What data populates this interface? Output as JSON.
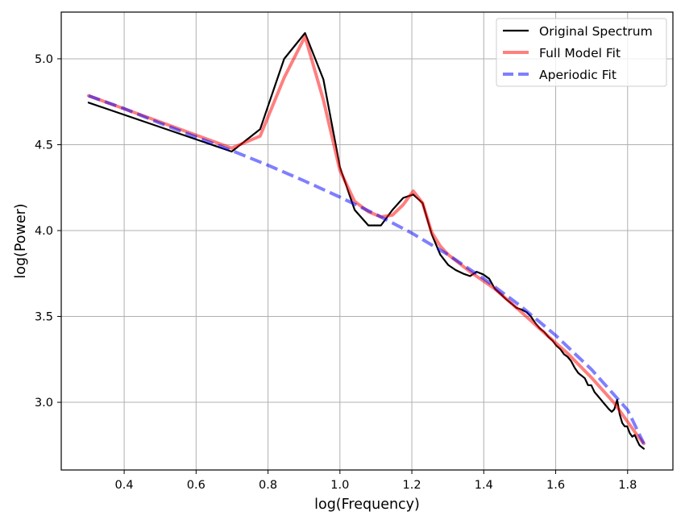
{
  "chart_data": {
    "type": "line",
    "title": "",
    "xlabel": "log(Frequency)",
    "ylabel": "log(Power)",
    "xlim": [
      0.225,
      1.926
    ],
    "ylim": [
      2.606,
      5.272
    ],
    "xticks": [
      0.4,
      0.6,
      0.8,
      1.0,
      1.2,
      1.4,
      1.6,
      1.8
    ],
    "xtick_labels": [
      "0.4",
      "0.6",
      "0.8",
      "1.0",
      "1.2",
      "1.4",
      "1.6",
      "1.8"
    ],
    "yticks": [
      3.0,
      3.5,
      4.0,
      4.5,
      5.0
    ],
    "ytick_labels": [
      "3.0",
      "3.5",
      "4.0",
      "4.5",
      "5.0"
    ],
    "grid": true,
    "legend_position": "upper right",
    "series": [
      {
        "name": "Original Spectrum",
        "color": "#000000",
        "style": "solid",
        "width": 2.2,
        "opacity": 1,
        "x": [
          0.301,
          0.699,
          0.778,
          0.845,
          0.903,
          0.954,
          1.0,
          1.041,
          1.079,
          1.114,
          1.146,
          1.176,
          1.204,
          1.23,
          1.255,
          1.279,
          1.301,
          1.322,
          1.342,
          1.362,
          1.38,
          1.398,
          1.415,
          1.431,
          1.447,
          1.462,
          1.477,
          1.491,
          1.505,
          1.519,
          1.531,
          1.544,
          1.556,
          1.568,
          1.58,
          1.591,
          1.602,
          1.613,
          1.623,
          1.633,
          1.643,
          1.653,
          1.663,
          1.672,
          1.681,
          1.69,
          1.699,
          1.708,
          1.716,
          1.724,
          1.732,
          1.74,
          1.748,
          1.756,
          1.763,
          1.771,
          1.778,
          1.785,
          1.792,
          1.799,
          1.806,
          1.813,
          1.82,
          1.826,
          1.833,
          1.839,
          1.845
        ],
        "y": [
          4.745,
          4.46,
          4.59,
          5.0,
          5.15,
          4.88,
          4.37,
          4.12,
          4.03,
          4.03,
          4.12,
          4.19,
          4.21,
          4.16,
          3.98,
          3.86,
          3.8,
          3.77,
          3.75,
          3.735,
          3.76,
          3.745,
          3.72,
          3.66,
          3.63,
          3.6,
          3.575,
          3.55,
          3.54,
          3.525,
          3.5,
          3.46,
          3.43,
          3.41,
          3.38,
          3.36,
          3.33,
          3.31,
          3.28,
          3.265,
          3.24,
          3.2,
          3.17,
          3.155,
          3.14,
          3.1,
          3.1,
          3.06,
          3.04,
          3.02,
          3.0,
          2.98,
          2.96,
          2.945,
          2.96,
          3.015,
          2.93,
          2.88,
          2.86,
          2.86,
          2.82,
          2.8,
          2.81,
          2.78,
          2.75,
          2.74,
          2.73
        ]
      },
      {
        "name": "Full Model Fit",
        "color": "#ff0000",
        "style": "solid",
        "width": 4,
        "opacity": 0.5,
        "x": [
          0.301,
          0.699,
          0.778,
          0.845,
          0.903,
          0.954,
          1.0,
          1.041,
          1.079,
          1.114,
          1.146,
          1.176,
          1.204,
          1.23,
          1.255,
          1.279,
          1.301,
          1.362,
          1.431,
          1.505,
          1.568,
          1.633,
          1.699,
          1.763,
          1.826,
          1.845
        ],
        "y": [
          4.785,
          4.48,
          4.55,
          4.89,
          5.13,
          4.76,
          4.35,
          4.17,
          4.11,
          4.08,
          4.09,
          4.15,
          4.23,
          4.16,
          3.99,
          3.91,
          3.86,
          3.76,
          3.66,
          3.525,
          3.405,
          3.285,
          3.145,
          2.995,
          2.81,
          2.76
        ]
      },
      {
        "name": "Aperiodic Fit",
        "color": "#0000ff",
        "style": "dashed",
        "width": 4,
        "opacity": 0.5,
        "x": [
          0.301,
          0.4,
          0.5,
          0.6,
          0.7,
          0.8,
          0.9,
          1.0,
          1.1,
          1.2,
          1.3,
          1.4,
          1.5,
          1.6,
          1.7,
          1.8,
          1.845
        ],
        "y": [
          4.785,
          4.71,
          4.625,
          4.545,
          4.465,
          4.38,
          4.29,
          4.195,
          4.095,
          3.985,
          3.86,
          3.72,
          3.565,
          3.39,
          3.19,
          2.955,
          2.76
        ]
      }
    ]
  }
}
